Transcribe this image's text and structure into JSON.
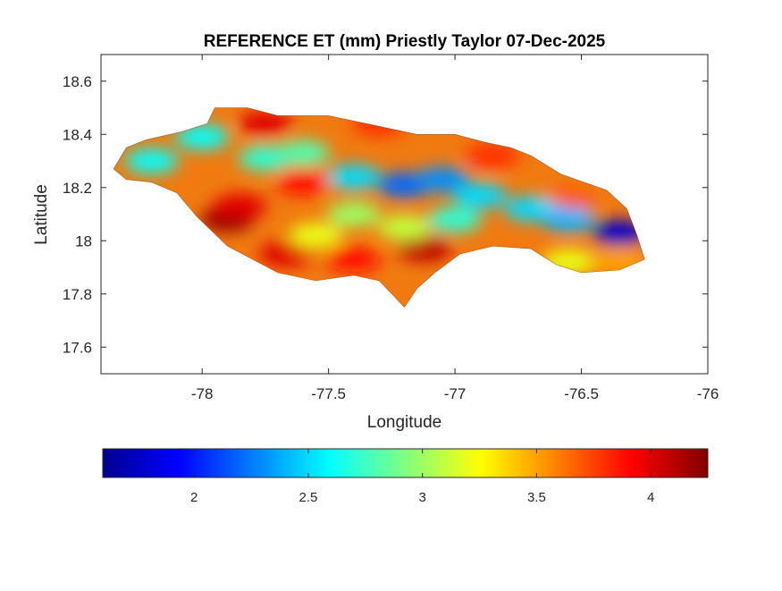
{
  "chart_data": [
    {
      "type": "heatmap",
      "title": "REFERENCE ET (mm) Priestly Taylor 07-Dec-2025",
      "xlabel": "Longitude",
      "ylabel": "Latitude",
      "xlim": [
        -78.4,
        -76
      ],
      "ylim": [
        17.5,
        18.7
      ],
      "xticks": [
        -78,
        -77.5,
        -77,
        -76.5,
        -76
      ],
      "xtick_labels": [
        "-78",
        "-77.5",
        "-77",
        "-76.5",
        "-76"
      ],
      "yticks": [
        17.6,
        17.8,
        18,
        18.2,
        18.4,
        18.6
      ],
      "ytick_labels": [
        "17.6",
        "17.8",
        "18",
        "18.2",
        "18.4",
        "18.6"
      ],
      "grid": false,
      "colormap": "jet",
      "region_outline": [
        [
          -78.35,
          18.27
        ],
        [
          -78.3,
          18.35
        ],
        [
          -78.22,
          18.38
        ],
        [
          -78.08,
          18.41
        ],
        [
          -77.98,
          18.44
        ],
        [
          -77.95,
          18.5
        ],
        [
          -77.82,
          18.5
        ],
        [
          -77.7,
          18.47
        ],
        [
          -77.5,
          18.47
        ],
        [
          -77.35,
          18.44
        ],
        [
          -77.15,
          18.4
        ],
        [
          -77.0,
          18.4
        ],
        [
          -76.88,
          18.37
        ],
        [
          -76.78,
          18.35
        ],
        [
          -76.7,
          18.32
        ],
        [
          -76.58,
          18.25
        ],
        [
          -76.4,
          18.19
        ],
        [
          -76.32,
          18.12
        ],
        [
          -76.28,
          18.02
        ],
        [
          -76.25,
          17.93
        ],
        [
          -76.35,
          17.89
        ],
        [
          -76.5,
          17.88
        ],
        [
          -76.6,
          17.91
        ],
        [
          -76.7,
          17.97
        ],
        [
          -76.85,
          17.98
        ],
        [
          -76.98,
          17.95
        ],
        [
          -77.08,
          17.88
        ],
        [
          -77.15,
          17.82
        ],
        [
          -77.2,
          17.75
        ],
        [
          -77.25,
          17.8
        ],
        [
          -77.3,
          17.85
        ],
        [
          -77.4,
          17.87
        ],
        [
          -77.55,
          17.85
        ],
        [
          -77.7,
          17.88
        ],
        [
          -77.8,
          17.93
        ],
        [
          -77.9,
          17.98
        ],
        [
          -78.02,
          18.09
        ],
        [
          -78.1,
          18.18
        ],
        [
          -78.2,
          18.22
        ],
        [
          -78.3,
          18.23
        ],
        [
          -78.35,
          18.27
        ]
      ],
      "hotspots": [
        {
          "lon": -77.75,
          "lat": 18.44,
          "value": 4.0
        },
        {
          "lon": -77.9,
          "lat": 18.08,
          "value": 4.2
        },
        {
          "lon": -77.85,
          "lat": 18.13,
          "value": 4.0
        },
        {
          "lon": -77.67,
          "lat": 17.95,
          "value": 4.0
        },
        {
          "lon": -77.4,
          "lat": 17.93,
          "value": 3.9
        },
        {
          "lon": -77.12,
          "lat": 17.97,
          "value": 4.1
        },
        {
          "lon": -77.6,
          "lat": 18.22,
          "value": 3.9
        },
        {
          "lon": -77.3,
          "lat": 18.44,
          "value": 3.8
        },
        {
          "lon": -76.85,
          "lat": 18.32,
          "value": 3.8
        },
        {
          "lon": -76.55,
          "lat": 18.15,
          "value": 3.7
        },
        {
          "lon": -76.55,
          "lat": 17.93,
          "value": 3.8
        },
        {
          "lon": -78.2,
          "lat": 18.3,
          "value": 2.6
        },
        {
          "lon": -78.0,
          "lat": 18.39,
          "value": 2.6
        },
        {
          "lon": -77.75,
          "lat": 18.31,
          "value": 2.7
        },
        {
          "lon": -77.6,
          "lat": 18.33,
          "value": 2.8
        },
        {
          "lon": -77.4,
          "lat": 18.24,
          "value": 2.5
        },
        {
          "lon": -77.2,
          "lat": 18.21,
          "value": 2.2
        },
        {
          "lon": -77.05,
          "lat": 18.23,
          "value": 2.3
        },
        {
          "lon": -76.9,
          "lat": 18.17,
          "value": 2.5
        },
        {
          "lon": -76.7,
          "lat": 18.12,
          "value": 2.5
        },
        {
          "lon": -76.55,
          "lat": 18.08,
          "value": 2.4
        },
        {
          "lon": -76.35,
          "lat": 18.03,
          "value": 1.8
        },
        {
          "lon": -77.0,
          "lat": 18.08,
          "value": 2.7
        },
        {
          "lon": -77.2,
          "lat": 18.05,
          "value": 3.1
        },
        {
          "lon": -77.4,
          "lat": 18.1,
          "value": 3.0
        },
        {
          "lon": -77.55,
          "lat": 18.02,
          "value": 3.2
        },
        {
          "lon": -76.55,
          "lat": 17.92,
          "value": 3.2
        },
        {
          "lon": -76.35,
          "lat": 17.92,
          "value": 3.5
        }
      ]
    },
    {
      "type": "colorbar",
      "colormap": "jet",
      "range": [
        1.6,
        4.25
      ],
      "ticks": [
        2,
        2.5,
        3,
        3.5,
        4
      ],
      "tick_labels": [
        "2",
        "2.5",
        "3",
        "3.5",
        "4"
      ]
    }
  ]
}
